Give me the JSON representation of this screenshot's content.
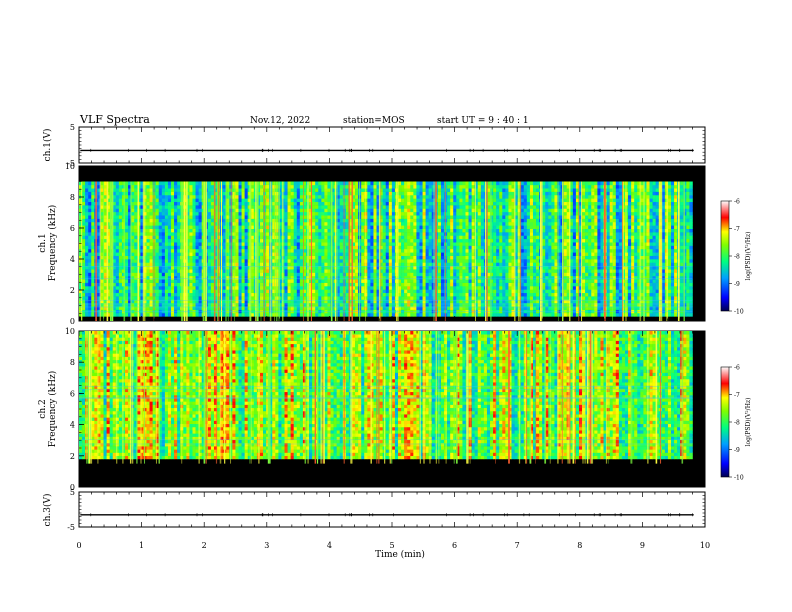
{
  "header": {
    "title": "VLF Spectra",
    "date": "Nov.12, 2022",
    "station": "station=MOS",
    "start": "start  UT =   9 : 40 : 1"
  },
  "chart_data": [
    {
      "type": "line",
      "panel": "ch1-voltage",
      "ylabel": "ch.1(V)",
      "ylim": [
        -5,
        5
      ],
      "yticks": [
        "5",
        "-5"
      ],
      "xlim": [
        0,
        10
      ],
      "series": [
        {
          "values": [
            -1.5,
            -1.5,
            -1.5,
            -1.5,
            -1.5,
            -1.5,
            -1.5,
            -1.5,
            -1.5,
            -1.5,
            -1.5
          ]
        }
      ]
    },
    {
      "type": "heatmap",
      "panel": "ch1-spectrogram",
      "ylabel": "ch.1\nFrequency (kHz)",
      "ylim": [
        0,
        10
      ],
      "yticks": [
        "0",
        "2",
        "4",
        "6",
        "8",
        "10"
      ],
      "xlim": [
        0,
        9.8
      ],
      "band_khz": [
        0.3,
        9.0
      ],
      "colorbar": {
        "label": "log(PSD)(V²/Hz)",
        "range": [
          -10,
          -6
        ],
        "ticks": [
          "-6",
          "-7",
          "-8",
          "-9",
          "-10"
        ]
      }
    },
    {
      "type": "heatmap",
      "panel": "ch2-spectrogram",
      "ylabel": "ch.2\nFrequency (kHz)",
      "ylim": [
        0,
        10
      ],
      "yticks": [
        "0",
        "2",
        "4",
        "6",
        "8",
        "10"
      ],
      "xlim": [
        0,
        9.8
      ],
      "band_khz": [
        1.8,
        10.0
      ],
      "colorbar": {
        "label": "log(PSD)(V²/Hz)",
        "range": [
          -10,
          -6
        ],
        "ticks": [
          "-6",
          "-7",
          "-8",
          "-9",
          "-10"
        ]
      }
    },
    {
      "type": "line",
      "panel": "ch3-voltage",
      "ylabel": "ch.3(V)",
      "ylim": [
        -5,
        5
      ],
      "yticks": [
        "5",
        "-5"
      ],
      "xlim": [
        0,
        10
      ],
      "series": [
        {
          "values": [
            -1.5,
            -1.5,
            -1.5,
            -1.5,
            -1.5,
            -1.5,
            -1.5,
            -1.5,
            -1.5,
            -1.5,
            -1.5
          ]
        }
      ]
    }
  ],
  "xaxis": {
    "label": "Time (min)",
    "ticks": [
      "0",
      "1",
      "2",
      "3",
      "4",
      "5",
      "6",
      "7",
      "8",
      "9",
      "10"
    ]
  }
}
